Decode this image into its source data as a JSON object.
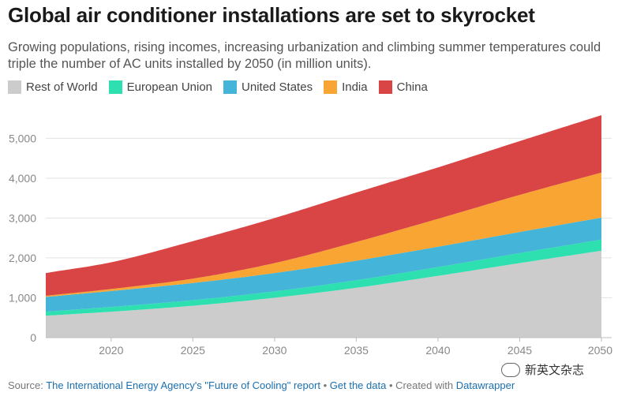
{
  "title": "Global air conditioner installations are set to skyrocket",
  "subtitle": "Growing populations, rising incomes, increasing urbanization and climbing summer temperatures could triple the number of AC units installed by 2050 (in million units).",
  "legend": [
    {
      "label": "Rest of World",
      "color": "#cccccc"
    },
    {
      "label": "European Union",
      "color": "#2ee0b0"
    },
    {
      "label": "United States",
      "color": "#45b4d9"
    },
    {
      "label": "India",
      "color": "#f9a533"
    },
    {
      "label": "China",
      "color": "#d94545"
    }
  ],
  "source": {
    "prefix": "Source:",
    "report": "The International Energy Agency's \"Future of Cooling\" report",
    "sep1": "•",
    "get_data": "Get the data",
    "sep2": "•",
    "created": "Created with",
    "tool": "Datawrapper"
  },
  "watermark": "新英文杂志",
  "chart_data": {
    "type": "area",
    "stacked": true,
    "title": "Global air conditioner installations are set to skyrocket",
    "ylabel": "",
    "xlabel": "",
    "xlim": [
      2016,
      2050
    ],
    "ylim": [
      0,
      5600
    ],
    "x_ticks": [
      "2020",
      "2025",
      "2030",
      "2035",
      "2040",
      "2045",
      "2050"
    ],
    "y_ticks": [
      "0",
      "1,000",
      "2,000",
      "3,000",
      "4,000",
      "5,000"
    ],
    "grid": true,
    "legend_position": "top-left",
    "x": [
      2016,
      2020,
      2025,
      2030,
      2035,
      2040,
      2045,
      2050
    ],
    "series": [
      {
        "name": "Rest of World",
        "color": "#cccccc",
        "values": [
          550,
          650,
          800,
          1000,
          1250,
          1550,
          1870,
          2180
        ]
      },
      {
        "name": "European Union",
        "color": "#2ee0b0",
        "values": [
          100,
          120,
          140,
          160,
          190,
          220,
          250,
          280
        ]
      },
      {
        "name": "United States",
        "color": "#45b4d9",
        "values": [
          370,
          400,
          430,
          460,
          490,
          510,
          530,
          550
        ]
      },
      {
        "name": "India",
        "color": "#f9a533",
        "values": [
          30,
          50,
          110,
          250,
          470,
          700,
          930,
          1130
        ]
      },
      {
        "name": "China",
        "color": "#d94545",
        "values": [
          570,
          670,
          940,
          1130,
          1240,
          1290,
          1350,
          1440
        ]
      }
    ]
  }
}
